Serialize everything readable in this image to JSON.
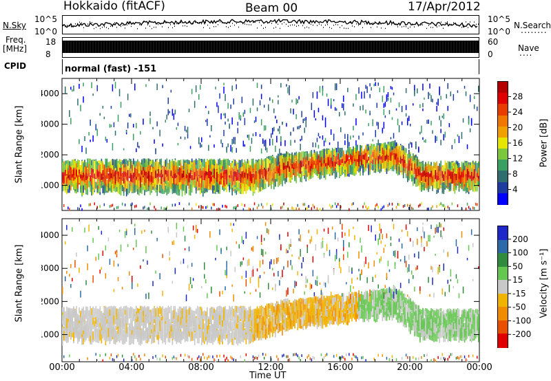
{
  "header": {
    "station": "Hokkaido (fitACF)",
    "beam": "Beam 00",
    "date": "17/Apr/2012"
  },
  "top_panels": {
    "nsky_label": "N.Sky",
    "nsky_ticks": [
      "10^5",
      "10^0"
    ],
    "nsearch_label": "N.Search",
    "nsearch_ticks": [
      "10^5",
      "10^0"
    ],
    "freq_label_line1": "Freq.",
    "freq_label_line2": "[MHz]",
    "freq_ticks": [
      "18",
      "8"
    ],
    "nave_label": "Nave",
    "nave_ticks": [
      "60",
      "0"
    ],
    "cpid_label": "CPID",
    "cpid_value": "normal (fast) -151"
  },
  "chart_data": [
    {
      "type": "heatmap",
      "title": "",
      "xlabel": "Time UT",
      "ylabel": "Slant Range [km]",
      "x_ticks": [
        "00:00",
        "04:00",
        "08:00",
        "12:00",
        "16:00",
        "20:00",
        "00:00"
      ],
      "xlim_hours": [
        0,
        24
      ],
      "y_ticks": [
        1000,
        2000,
        3000,
        4000
      ],
      "ylim": [
        180,
        4500
      ],
      "colorbar": {
        "label": "Power [dB]",
        "ticks": [
          4,
          8,
          12,
          16,
          20,
          24,
          28
        ],
        "range": [
          0,
          32
        ],
        "colors": [
          "#0000ff",
          "#1e3ca0",
          "#2e6e6e",
          "#3aa060",
          "#7cc83c",
          "#e6e600",
          "#f0a000",
          "#f07800",
          "#e83c00",
          "#e00000",
          "#b40000"
        ]
      }
    },
    {
      "type": "heatmap",
      "title": "",
      "xlabel": "Time UT",
      "ylabel": "Slant Range [km]",
      "x_ticks": [
        "00:00",
        "04:00",
        "08:00",
        "12:00",
        "16:00",
        "20:00",
        "00:00"
      ],
      "xlim_hours": [
        0,
        24
      ],
      "y_ticks": [
        1000,
        2000,
        3000,
        4000
      ],
      "ylim": [
        180,
        4500
      ],
      "colorbar": {
        "label": "Velocity [m s⁻¹]",
        "ticks": [
          200,
          100,
          50,
          15,
          -15,
          -50,
          -100,
          -200
        ],
        "colors": [
          "#1e28c8",
          "#2a6aa8",
          "#2e8c3c",
          "#64c850",
          "#c8c8c8",
          "#f0b400",
          "#f08c00",
          "#e85000",
          "#e00000"
        ]
      }
    }
  ],
  "x_axis": {
    "ticks": [
      "00:00",
      "04:00",
      "08:00",
      "12:00",
      "16:00",
      "20:00",
      "00:00"
    ],
    "label": "Time UT"
  }
}
